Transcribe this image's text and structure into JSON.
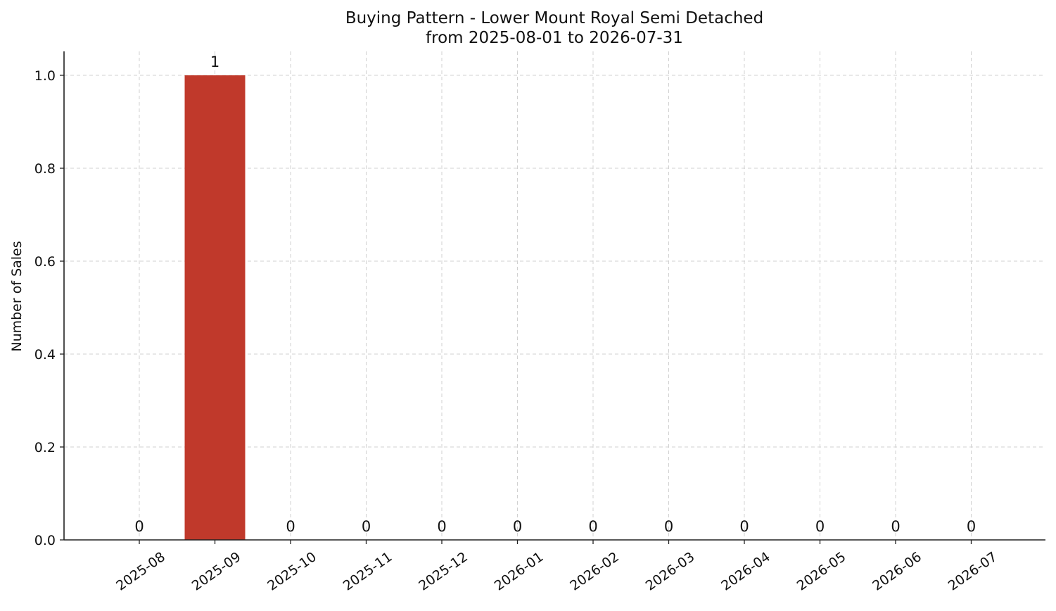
{
  "chart_data": {
    "type": "bar",
    "title": "Buying Pattern - Lower Mount Royal Semi Detached",
    "subtitle": "from 2025-08-01 to 2026-07-31",
    "xlabel": "",
    "ylabel": "Number of Sales",
    "categories": [
      "2025-08",
      "2025-09",
      "2025-10",
      "2025-11",
      "2025-12",
      "2026-01",
      "2026-02",
      "2026-03",
      "2026-04",
      "2026-05",
      "2026-06",
      "2026-07"
    ],
    "values": [
      0,
      1,
      0,
      0,
      0,
      0,
      0,
      0,
      0,
      0,
      0,
      0
    ],
    "data_labels": [
      "0",
      "1",
      "0",
      "0",
      "0",
      "0",
      "0",
      "0",
      "0",
      "0",
      "0",
      "0"
    ],
    "ylim": [
      0,
      1.05
    ],
    "yticks": [
      "0.0",
      "0.2",
      "0.4",
      "0.6",
      "0.8",
      "1.0"
    ],
    "ytick_values": [
      0,
      0.2,
      0.4,
      0.6,
      0.8,
      1.0
    ],
    "grid": true,
    "legend": "none",
    "bar_color": "#c0392b"
  }
}
